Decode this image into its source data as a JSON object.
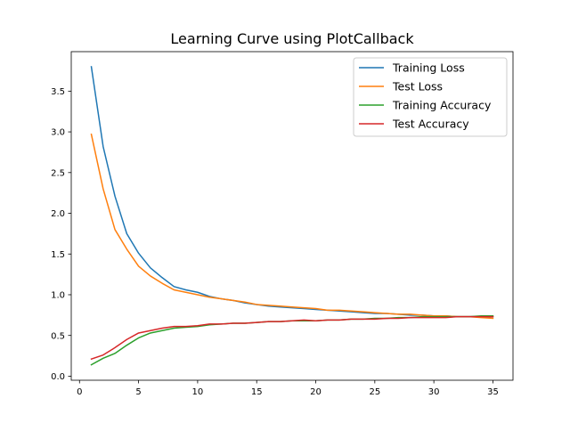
{
  "chart_data": {
    "type": "line",
    "title": "Learning Curve using PlotCallback",
    "xlabel": "",
    "ylabel": "",
    "xlim": [
      -0.7,
      36.7
    ],
    "ylim": [
      -0.05,
      3.985
    ],
    "x_ticks": [
      0,
      5,
      10,
      15,
      20,
      25,
      30,
      35
    ],
    "y_ticks": [
      0.0,
      0.5,
      1.0,
      1.5,
      2.0,
      2.5,
      3.0,
      3.5
    ],
    "x_tick_labels": [
      "0",
      "5",
      "10",
      "15",
      "20",
      "25",
      "30",
      "35"
    ],
    "y_tick_labels": [
      "0.0",
      "0.5",
      "1.0",
      "1.5",
      "2.0",
      "2.5",
      "3.0",
      "3.5"
    ],
    "grid": false,
    "legend_position": "top-right",
    "x": [
      1,
      2,
      3,
      4,
      5,
      6,
      7,
      8,
      9,
      10,
      11,
      12,
      13,
      14,
      15,
      16,
      17,
      18,
      19,
      20,
      21,
      22,
      23,
      24,
      25,
      26,
      27,
      28,
      29,
      30,
      31,
      32,
      33,
      34,
      35
    ],
    "series": [
      {
        "name": "Training Loss",
        "color": "#1f77b4",
        "values": [
          3.8,
          2.82,
          2.21,
          1.75,
          1.51,
          1.33,
          1.21,
          1.1,
          1.06,
          1.03,
          0.98,
          0.95,
          0.93,
          0.9,
          0.88,
          0.86,
          0.85,
          0.84,
          0.83,
          0.82,
          0.81,
          0.8,
          0.79,
          0.78,
          0.77,
          0.77,
          0.76,
          0.75,
          0.75,
          0.74,
          0.74,
          0.73,
          0.73,
          0.73,
          0.73
        ]
      },
      {
        "name": "Test Loss",
        "color": "#ff7f0e",
        "values": [
          2.97,
          2.3,
          1.8,
          1.56,
          1.35,
          1.23,
          1.14,
          1.06,
          1.03,
          1.0,
          0.97,
          0.95,
          0.93,
          0.91,
          0.88,
          0.87,
          0.86,
          0.85,
          0.84,
          0.83,
          0.81,
          0.81,
          0.8,
          0.79,
          0.78,
          0.77,
          0.76,
          0.76,
          0.75,
          0.74,
          0.74,
          0.73,
          0.73,
          0.72,
          0.71
        ]
      },
      {
        "name": "Training Accuracy",
        "color": "#2ca02c",
        "values": [
          0.14,
          0.22,
          0.28,
          0.38,
          0.47,
          0.53,
          0.56,
          0.59,
          0.6,
          0.61,
          0.63,
          0.64,
          0.65,
          0.65,
          0.66,
          0.67,
          0.67,
          0.68,
          0.68,
          0.68,
          0.69,
          0.69,
          0.7,
          0.7,
          0.71,
          0.71,
          0.72,
          0.72,
          0.73,
          0.73,
          0.73,
          0.73,
          0.73,
          0.74,
          0.74
        ]
      },
      {
        "name": "Test Accuracy",
        "color": "#d62728",
        "values": [
          0.21,
          0.26,
          0.35,
          0.45,
          0.53,
          0.56,
          0.59,
          0.61,
          0.61,
          0.62,
          0.64,
          0.64,
          0.65,
          0.65,
          0.66,
          0.67,
          0.67,
          0.68,
          0.69,
          0.68,
          0.69,
          0.69,
          0.7,
          0.7,
          0.7,
          0.71,
          0.71,
          0.72,
          0.72,
          0.72,
          0.72,
          0.73,
          0.73,
          0.73,
          0.73
        ]
      }
    ]
  }
}
